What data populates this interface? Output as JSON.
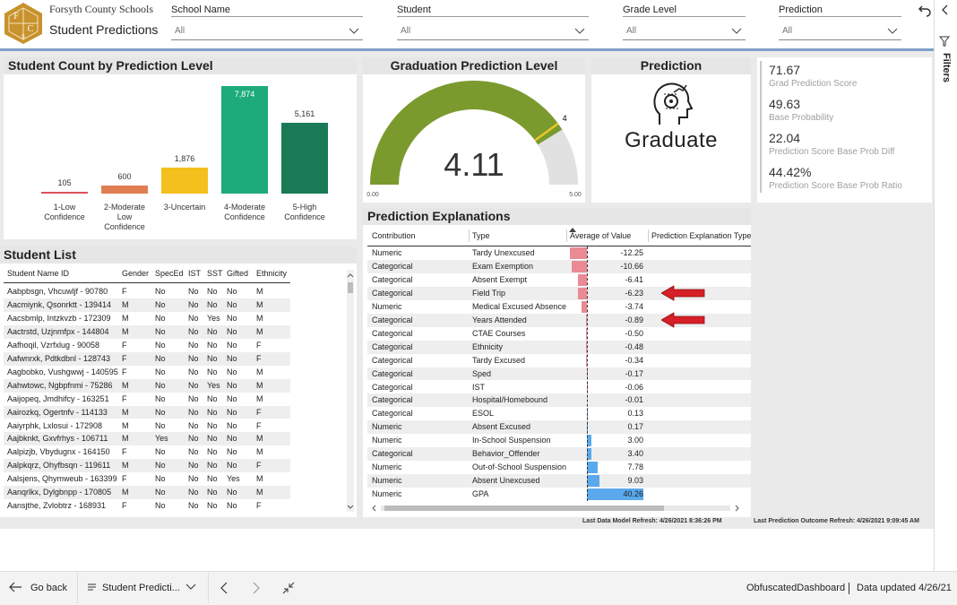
{
  "header": {
    "logo_letters": [
      "F",
      "C",
      "S"
    ],
    "organization": "Forsyth County Schools",
    "title": "Student Predictions"
  },
  "filters": [
    {
      "label": "School Name",
      "value": "All"
    },
    {
      "label": "Student",
      "value": "All"
    },
    {
      "label": "Grade Level",
      "value": "All"
    },
    {
      "label": "Prediction",
      "value": "All"
    }
  ],
  "sidebar": {
    "label": "Filters"
  },
  "chart_data": [
    {
      "type": "bar",
      "title": "Student Count by Prediction Level",
      "categories": [
        "1-Low Confidence",
        "2-Moderate Low Confidence",
        "3-Uncertain",
        "4-Moderate Confidence",
        "5-High Confidence"
      ],
      "values": [
        105,
        600,
        1876,
        7874,
        5161
      ],
      "value_labels": [
        "105",
        "600",
        "1,876",
        "7,874",
        "5,161"
      ],
      "colors": [
        "#e0505a",
        "#e07e52",
        "#f4c01e",
        "#1dab7b",
        "#1a7a55"
      ]
    },
    {
      "type": "gauge",
      "title": "Graduation Prediction Level",
      "value": 4.11,
      "target": 4,
      "range": [
        {
          "value": 0,
          "label": "0.00"
        },
        {
          "value": 5,
          "label": "5.00"
        }
      ],
      "color": "#7b9a2d",
      "target_color": "#e6c62b",
      "track_color": "#e1e1e1"
    }
  ],
  "prediction": {
    "title": "Prediction",
    "label": "Graduate"
  },
  "kpis": [
    {
      "value": "71.67",
      "label": "Grad Prediction Score"
    },
    {
      "value": "49.63",
      "label": "Base Probability"
    },
    {
      "value": "22.04",
      "label": "Prediction Score Base Prob Diff"
    },
    {
      "value": "44.42%",
      "label": "Prediction Score Base Prob Ratio"
    }
  ],
  "student_list": {
    "title": "Student List",
    "columns": [
      "Student Name ID",
      "Gender",
      "SpecEd",
      "IST",
      "SST",
      "Gifted",
      "Ethnicity"
    ],
    "rows": [
      [
        "Aabpbsgn, Vhcuwljf - 90780",
        "F",
        "No",
        "No",
        "No",
        "No",
        "M"
      ],
      [
        "Aacmiynk, Qsonrktt - 139414",
        "M",
        "No",
        "No",
        "No",
        "No",
        "M"
      ],
      [
        "Aacsbmlp, Intzkvzb - 172309",
        "M",
        "No",
        "No",
        "Yes",
        "No",
        "M"
      ],
      [
        "Aactrstd, Uzjnmfpx - 144804",
        "M",
        "No",
        "No",
        "No",
        "No",
        "M"
      ],
      [
        "Aafhoqil, Vzrfxlug - 90058",
        "F",
        "No",
        "No",
        "No",
        "No",
        "F"
      ],
      [
        "Aafwnrxk, Pdtkdbnl - 128743",
        "F",
        "No",
        "No",
        "No",
        "No",
        "F"
      ],
      [
        "Aagbobko, Vushgwwj - 140595",
        "F",
        "No",
        "No",
        "No",
        "No",
        "M"
      ],
      [
        "Aahwtowc, Ngbpfnmi - 75286",
        "M",
        "No",
        "No",
        "Yes",
        "No",
        "M"
      ],
      [
        "Aaijopeq, Jmdhifcy - 163251",
        "F",
        "No",
        "No",
        "No",
        "No",
        "M"
      ],
      [
        "Aairozkq, Ogertnfv - 114133",
        "M",
        "No",
        "No",
        "No",
        "No",
        "F"
      ],
      [
        "Aaiyrphk, Lxlosui - 172908",
        "M",
        "No",
        "No",
        "No",
        "No",
        "F"
      ],
      [
        "Aajbknkt, Gxvfrhys - 106711",
        "M",
        "Yes",
        "No",
        "No",
        "No",
        "M"
      ],
      [
        "Aalpizjb, Vbydugnx - 164150",
        "F",
        "No",
        "No",
        "No",
        "No",
        "M"
      ],
      [
        "Aalpkqrz, Ohyfbsqn - 119611",
        "M",
        "No",
        "No",
        "No",
        "No",
        "F"
      ],
      [
        "Aalsjens, Qhymweub - 163399",
        "F",
        "No",
        "No",
        "No",
        "Yes",
        "M"
      ],
      [
        "Aanqrlkx, Dylgbnpp - 170805",
        "M",
        "No",
        "No",
        "No",
        "No",
        "M"
      ],
      [
        "Aansjthe, Zvlobtrz - 168931",
        "F",
        "No",
        "No",
        "No",
        "No",
        "F"
      ]
    ]
  },
  "explanations": {
    "title": "Prediction Explanations",
    "columns": [
      "Contribution",
      "Type",
      "Average of Value",
      "Prediction Explanation Type"
    ],
    "rows": [
      [
        "Numeric",
        "Tardy Unexcused"
      ],
      [
        "Categorical",
        "Exam Exemption"
      ],
      [
        "Categorical",
        "Absent Exempt"
      ],
      [
        "Categorical",
        "Field Trip"
      ],
      [
        "Numeric",
        "Medical Excused Absence"
      ],
      [
        "Categorical",
        "Years Attended"
      ],
      [
        "Categorical",
        "CTAE Courses"
      ],
      [
        "Categorical",
        "Ethnicity"
      ],
      [
        "Categorical",
        "Tardy Excused"
      ],
      [
        "Categorical",
        "Sped"
      ],
      [
        "Categorical",
        "IST"
      ],
      [
        "Categorical",
        "Hospital/Homebound"
      ],
      [
        "Categorical",
        "ESOL"
      ],
      [
        "Numeric",
        "Absent Excused"
      ],
      [
        "Numeric",
        "In-School Suspension"
      ],
      [
        "Categorical",
        "Behavior_Offender"
      ],
      [
        "Numeric",
        "Out-of-School Suspension"
      ],
      [
        "Numeric",
        "Absent Unexcused"
      ],
      [
        "Numeric",
        "GPA"
      ]
    ],
    "values": [
      -12.25,
      -10.66,
      -6.41,
      -6.23,
      -3.74,
      -0.89,
      -0.5,
      -0.48,
      -0.34,
      -0.17,
      -0.06,
      -0.01,
      0.13,
      0.17,
      3,
      3.4,
      7.78,
      9.03,
      40.26
    ],
    "value_labels": [
      "-12.25",
      "-10.66",
      "-6.41",
      "-6.23",
      "-3.74",
      "-0.89",
      "-0.50",
      "-0.48",
      "-0.34",
      "-0.17",
      "-0.06",
      "-0.01",
      "0.13",
      "0.17",
      "3.00",
      "3.40",
      "7.78",
      "9.03",
      "40.26"
    ],
    "negative_color": "#e98a94",
    "positive_color": "#5aa9ec"
  },
  "footer": {
    "model_refresh": "Last Data Model Refresh: 4/26/2021 8:36:26 PM",
    "outcome_refresh": "Last Prediction Outcome Refresh: 4/26/2021 9:09:45 AM"
  },
  "taskbar": {
    "back": "Go back",
    "page": "Student Predicti...",
    "report": "ObfuscatedDashboard",
    "updated": "Data updated 4/26/21"
  }
}
